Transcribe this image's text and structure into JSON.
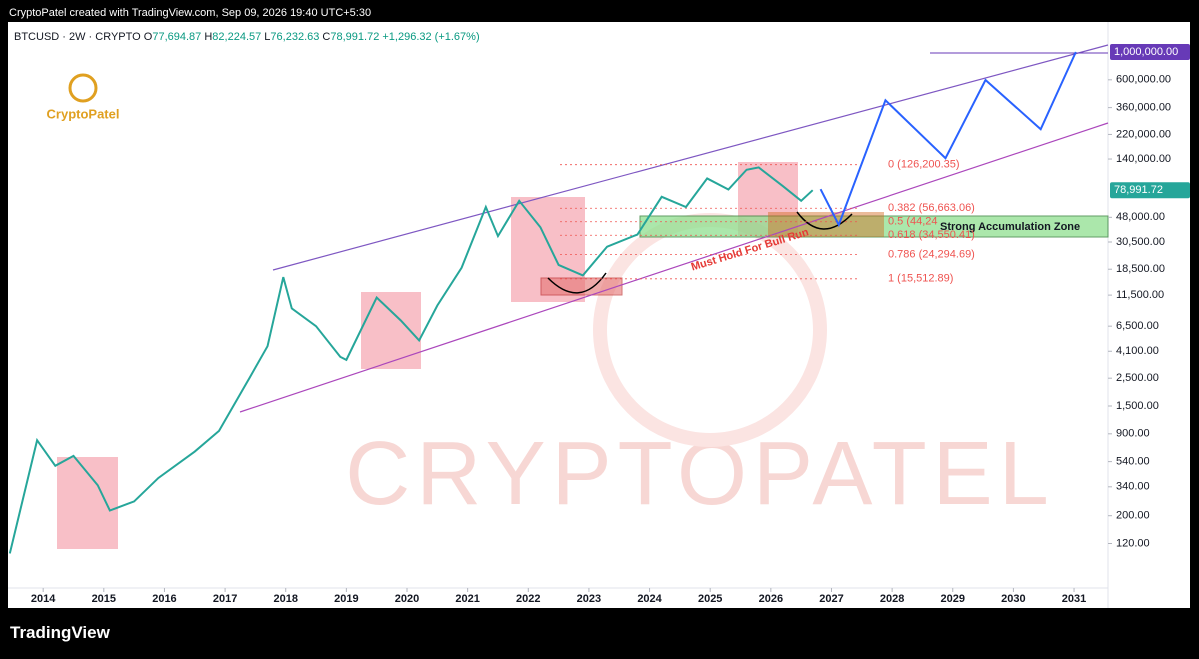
{
  "header": {
    "credit": "CryptoPatel created with TradingView.com, Sep 09, 2026 19:40 UTC+5:30",
    "symbol": "BTCUSD · 2W · CRYPTO",
    "open_label": "O",
    "open": "77,694.87",
    "high_label": "H",
    "high": "82,224.57",
    "low_label": "L",
    "low": "76,232.63",
    "close_label": "C",
    "close": "78,991.72",
    "change": "+1,296.32 (+1.67%)"
  },
  "logo": "CryptoPatel",
  "watermark": "CRYPTOPATEL",
  "footer": "TradingView",
  "chart_data": {
    "type": "line",
    "log_scale": true,
    "xlim": [
      2013.42,
      2031.56
    ],
    "xticks": [
      2014,
      2015,
      2016,
      2017,
      2018,
      2019,
      2020,
      2021,
      2022,
      2023,
      2024,
      2025,
      2026,
      2027,
      2028,
      2029,
      2030,
      2031
    ],
    "ylim": [
      53,
      1735000
    ],
    "yticks": [
      {
        "value": 120,
        "label": "120.00"
      },
      {
        "value": 200,
        "label": "200.00"
      },
      {
        "value": 340,
        "label": "340.00"
      },
      {
        "value": 540,
        "label": "540.00"
      },
      {
        "value": 900,
        "label": "900.00"
      },
      {
        "value": 1500,
        "label": "1,500.00"
      },
      {
        "value": 2500,
        "label": "2,500.00"
      },
      {
        "value": 4100,
        "label": "4,100.00"
      },
      {
        "value": 6500,
        "label": "6,500.00"
      },
      {
        "value": 11500,
        "label": "11,500.00"
      },
      {
        "value": 18500,
        "label": "18,500.00"
      },
      {
        "value": 30500,
        "label": "30,500.00"
      },
      {
        "value": 48000,
        "label": "48,000.00"
      },
      {
        "value": 140000,
        "label": "140,000.00"
      },
      {
        "value": 220000,
        "label": "220,000.00"
      },
      {
        "value": 360000,
        "label": "360,000.00"
      },
      {
        "value": 600000,
        "label": "600,000.00"
      }
    ],
    "price_tags": [
      {
        "value": 1000000,
        "label": "1,000,000.00",
        "color": "#673ab7"
      },
      {
        "value": 78991.72,
        "label": "78,991.72",
        "color": "#26a69a"
      }
    ],
    "series": [
      {
        "color": "#26a69a",
        "x": [
          2013.45,
          2013.9,
          2014.2,
          2014.5,
          2014.9,
          2015.1,
          2015.5,
          2015.9,
          2016.5,
          2016.9,
          2017.4,
          2017.7,
          2017.96,
          2018.1,
          2018.5,
          2018.9,
          2019.0,
          2019.5,
          2019.9,
          2020.2,
          2020.5,
          2020.9,
          2021.3,
          2021.5,
          2021.85,
          2022.2,
          2022.5,
          2022.9,
          2023.3,
          2023.8,
          2024.2,
          2024.6,
          2024.95,
          2025.3,
          2025.6,
          2025.8,
          2026.2,
          2026.5,
          2026.69
        ],
        "values": [
          100,
          800,
          500,
          600,
          350,
          220,
          260,
          400,
          650,
          950,
          2500,
          4500,
          16000,
          9000,
          6500,
          3700,
          3500,
          11000,
          7200,
          5000,
          9500,
          19000,
          58000,
          34000,
          65000,
          40000,
          20000,
          16500,
          28000,
          35000,
          70000,
          58000,
          98000,
          80000,
          115000,
          120000,
          85000,
          65000,
          78991.72
        ]
      },
      {
        "color": "#2962ff",
        "x": [
          2026.82,
          2027.12,
          2027.89,
          2028.88,
          2029.54,
          2030.45,
          2031.03
        ],
        "values": [
          80500,
          41800,
          412000,
          142000,
          598000,
          242000,
          1000000
        ]
      }
    ],
    "fib_levels": [
      {
        "value": 126200.35,
        "label": "0 (126,200.35)"
      },
      {
        "value": 56663.06,
        "label": "0.382 (56,663.06)"
      },
      {
        "value": 44243,
        "label": "0.5 (44,24"
      },
      {
        "value": 34550.41,
        "label": "0.618 (34,550.41)"
      },
      {
        "value": 24294.69,
        "label": "0.786 (24,294.69)"
      },
      {
        "value": 15512.89,
        "label": "1 (15,512.89)"
      }
    ],
    "annotations": [
      "Strong Accumulation Zone",
      "Must Hold For Bull Run"
    ]
  }
}
